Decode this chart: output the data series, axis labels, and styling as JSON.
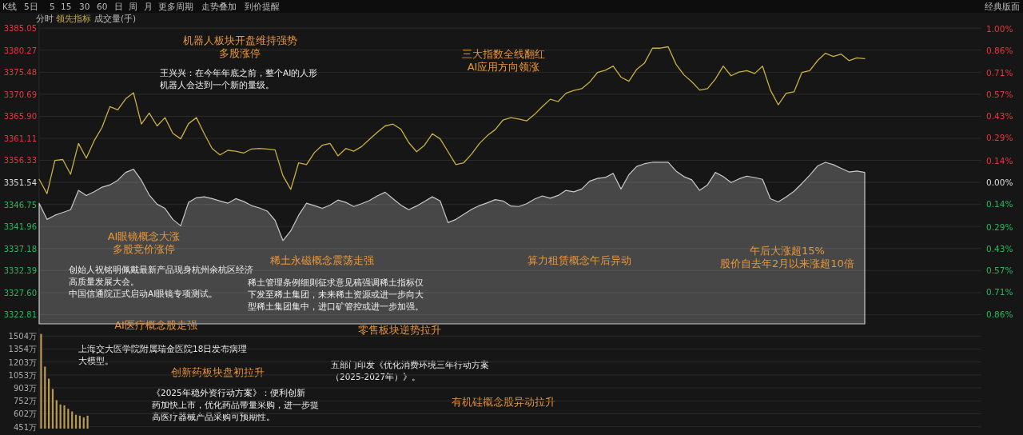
{
  "chart_data": [
    {
      "type": "line",
      "categories": [
        null,
        null,
        null,
        null,
        null,
        null,
        null,
        null,
        null,
        null,
        null,
        null,
        null,
        null,
        null,
        null,
        null,
        null,
        null,
        null,
        null,
        null,
        null,
        null,
        null,
        null,
        null,
        null,
        null,
        null,
        null,
        null,
        null,
        null,
        null,
        null,
        null,
        null,
        null,
        null,
        null,
        null,
        null,
        null,
        null,
        null,
        null,
        null,
        null,
        null,
        null,
        null,
        null,
        null,
        null,
        null,
        null,
        null,
        null,
        null,
        null,
        null,
        null,
        null,
        null,
        null,
        null,
        null,
        null,
        null,
        null,
        null,
        null,
        null,
        null,
        null,
        null,
        null,
        null,
        null,
        null,
        null,
        null,
        null,
        null,
        null,
        null,
        null,
        null,
        null,
        null,
        null,
        null,
        null,
        null,
        null,
        null,
        null,
        null,
        null,
        null,
        null,
        null,
        null,
        null,
        null
      ],
      "ylim": [
        3320.8,
        3386.3
      ],
      "yticks": [
        3385.05,
        3380.27,
        3375.48,
        3370.69,
        {
          "value": 3365.9,
          "label": "3365.90"
        },
        3361.11,
        3356.33,
        3351.54,
        3346.75,
        3341.96,
        3337.18,
        3332.39,
        {
          "value": 3327.6,
          "label": "3327.60"
        },
        3322.81
      ],
      "y2lim": [
        -0.92,
        1.04
      ],
      "y2ticks": [
        {
          "value": 1.0,
          "label": "1.00%"
        },
        {
          "value": 0.86,
          "label": "0.86%"
        },
        {
          "value": 0.71,
          "label": "0.71%"
        },
        {
          "value": 0.57,
          "label": "0.57%"
        },
        {
          "value": 0.43,
          "label": "0.43%"
        },
        {
          "value": 0.29,
          "label": "0.29%"
        },
        {
          "value": 0.14,
          "label": "0.14%"
        },
        {
          "value": 0,
          "label": "0.00%"
        },
        {
          "value": -0.14,
          "label": "0.14%"
        },
        {
          "value": -0.29,
          "label": "0.29%"
        },
        {
          "value": -0.43,
          "label": "0.43%"
        },
        {
          "value": -0.57,
          "label": "0.57%"
        },
        {
          "value": -0.71,
          "label": "0.71%"
        },
        {
          "value": -0.86,
          "label": "0.86%"
        }
      ],
      "tick_labels": "y",
      "grid": "y",
      "series": [
        {
          "type": "area",
          "color": "#c8c8c8",
          "values": [
            3347.0,
            3343.5,
            3344.4,
            3345.0,
            3345.6,
            3349.8,
            3348.7,
            3349.5,
            3350.5,
            3351.0,
            3352.0,
            3353.7,
            3354.4,
            3352.0,
            3348.8,
            3346.8,
            3345.9,
            3343.5,
            3342.1,
            3347.2,
            3348.2,
            3348.4,
            3348.0,
            3347.5,
            3347.0,
            3348.0,
            3347.4,
            3346.5,
            3346.0,
            3345.3,
            3343.3,
            3338.9,
            3341.0,
            3344.4,
            3347.0,
            3346.5,
            3345.9,
            3346.6,
            3347.7,
            3347.2,
            3346.3,
            3346.9,
            3347.6,
            3348.6,
            3349.4,
            3348.0,
            3346.6,
            3345.6,
            3346.4,
            3347.4,
            3348.4,
            3347.5,
            3342.8,
            3343.5,
            3344.6,
            3345.7,
            3346.5,
            3347.1,
            3347.8,
            3347.5,
            3346.4,
            3346.3,
            3346.9,
            3347.9,
            3348.6,
            3348.1,
            3348.7,
            3349.8,
            3349.5,
            3350.1,
            3351.8,
            3352.4,
            3352.6,
            3353.5,
            3350.1,
            3353.2,
            3355.0,
            3355.6,
            3355.9,
            3355.9,
            3355.9,
            3354.0,
            3352.8,
            3352.1,
            3349.8,
            3351.0,
            3353.7,
            3352.8,
            3351.5,
            3352.3,
            3352.9,
            3352.6,
            3352.2,
            3348.0,
            3347.3,
            3348.4,
            3349.6,
            3351.3,
            3353.1,
            3355.1,
            3355.9,
            3355.4,
            3354.6,
            3353.8,
            3354.0,
            3353.7
          ]
        },
        {
          "color": "#c9b043",
          "values": [
            3352.2,
            3349.1,
            3356.3,
            3356.5,
            3353.3,
            3360.0,
            3356.8,
            3360.6,
            3363.5,
            3368.0,
            3367.3,
            3369.7,
            3371.0,
            3364.2,
            3366.6,
            3363.8,
            3365.6,
            3362.2,
            3361.0,
            3364.3,
            3365.6,
            3362.1,
            3358.9,
            3357.5,
            3358.5,
            3358.3,
            3357.9,
            3358.8,
            3358.9,
            3358.8,
            3358.6,
            3353.0,
            3350.0,
            3355.8,
            3355.4,
            3358.0,
            3359.6,
            3360.0,
            3357.3,
            3358.9,
            3358.3,
            3359.3,
            3360.9,
            3362.4,
            3363.8,
            3364.2,
            3363.1,
            3360.2,
            3358.2,
            3359.6,
            3362.1,
            3361.0,
            3358.2,
            3355.4,
            3355.8,
            3357.7,
            3360.0,
            3361.7,
            3363.0,
            3365.1,
            3365.6,
            3365.3,
            3364.9,
            3366.3,
            3368.0,
            3369.6,
            3369.1,
            3370.9,
            3371.5,
            3371.9,
            3373.3,
            3375.4,
            3375.9,
            3376.8,
            3374.4,
            3373.5,
            3376.1,
            3377.5,
            3380.7,
            3380.7,
            3381.0,
            3377.2,
            3374.9,
            3373.4,
            3371.6,
            3371.9,
            3374.0,
            3376.8,
            3374.7,
            3375.5,
            3375.8,
            3375.2,
            3376.8,
            3371.6,
            3368.4,
            3370.9,
            3371.2,
            3375.4,
            3375.8,
            3378.0,
            3379.6,
            3378.9,
            3379.4,
            3378.0,
            3378.6,
            3378.4
          ]
        }
      ],
      "annotations": [
        "K线",
        "5日",
        "5",
        "15",
        "30",
        "60",
        "日",
        "周",
        "月",
        "更多周期",
        "走势叠加",
        "到价提醒",
        "经典版面",
        "分时",
        "领先指标",
        "成交量(手)",
        "机器人板块开盘维持强势",
        "多股涨停",
        "王兴兴：在今年年底之前，整个AI的人形机器人会达到一个新的量级。",
        "三大指数全线翻红",
        "AI应用方向领涨",
        "AI眼镜概念大涨",
        "多股竞价涨停",
        "创始人祝铭明佩戴最新产品现身杭州余杭区经济高质量发展大会。",
        "中国信通院正式启动AI眼镜专项测试。",
        "稀土永磁概念震荡走强",
        "稀土管理条例细则征求意见稿强调稀土指标仅下发至稀土集团，未来稀土资源或进一步向大型稀土集团集中，进口矿管控或进一步加强。",
        "算力租赁概念午后异动",
        "午后大涨超15%",
        "股价自去年2月以来涨超10倍",
        "AI医疗概念股走强",
        "上海交大医学院附属瑞金医院18日发布病理大模型。",
        "零售板块逆势拉升",
        "五部门印发《优化消费环境三年行动方案（2025-2027年）》。",
        "创新药板块盘初拉升",
        "《2025年稳外资行动方案》：便利创新药加快上市，优化药品带量采购，进一步提高医疗器械产品采购可预期性。",
        "有机硅概念股异动拉升"
      ]
    },
    {
      "type": "bar",
      "categories": [
        null,
        null,
        null,
        null,
        null,
        null,
        null,
        null,
        null,
        null,
        null,
        null,
        null
      ],
      "ylim": [
        430,
        1600
      ],
      "yticks": [
        {
          "value": 1504,
          "label": "1504万"
        },
        {
          "value": 1354,
          "label": "1354万"
        },
        {
          "value": 1203,
          "label": "1203万"
        },
        {
          "value": 1053,
          "label": "1053万"
        },
        {
          "value": 903,
          "label": "903万"
        },
        {
          "value": 752,
          "label": "752万"
        },
        {
          "value": 602,
          "label": "602万"
        },
        {
          "value": 451,
          "label": "451万"
        }
      ],
      "tick_labels": "y",
      "grid": "y",
      "series": [
        {
          "color": "#b89a55",
          "values": [
            1530,
            1150,
            1010,
            890,
            760,
            710,
            700,
            660,
            630,
            590,
            580,
            560,
            580
          ]
        }
      ]
    }
  ]
}
